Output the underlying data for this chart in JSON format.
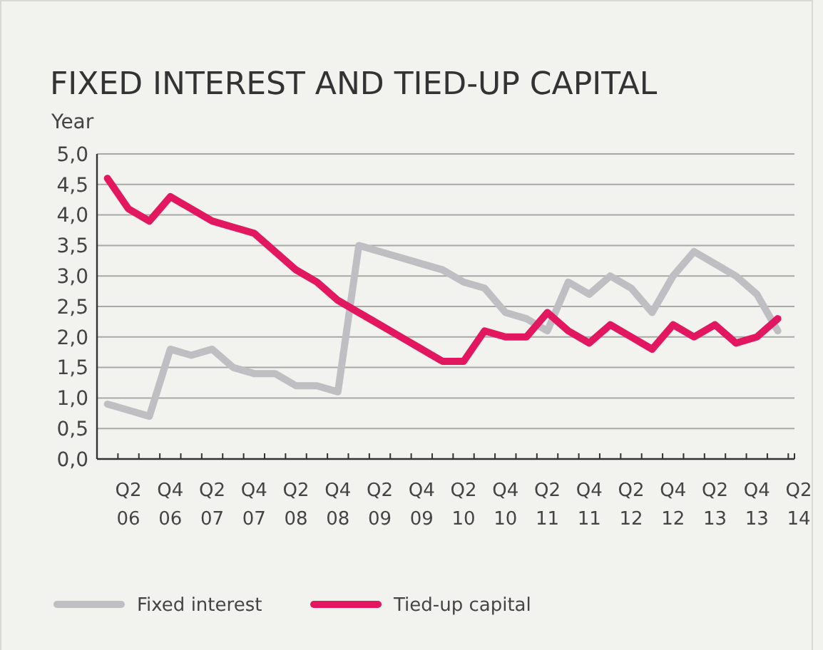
{
  "chart_data": {
    "type": "line",
    "title": "FIXED INTEREST AND TIED-UP CAPITAL",
    "ylabel": "Year",
    "categories": [
      null,
      "Q2 06",
      null,
      "Q4 06",
      null,
      "Q2 07",
      null,
      "Q4 07",
      null,
      "Q2 08",
      null,
      "Q4 08",
      null,
      "Q2 09",
      null,
      "Q4 09",
      null,
      "Q2 10",
      null,
      "Q4 10",
      null,
      "Q2 11",
      null,
      "Q4 11",
      null,
      "Q2 12",
      null,
      "Q4 12",
      null,
      "Q2 13",
      null,
      "Q4 13",
      null,
      "Q2 14"
    ],
    "series": [
      {
        "name": "Fixed interest",
        "color": "#bfbfc3",
        "values": [
          0.9,
          0.8,
          0.7,
          1.8,
          1.7,
          1.8,
          1.5,
          1.4,
          1.4,
          1.2,
          1.2,
          1.1,
          3.5,
          3.4,
          3.3,
          3.2,
          3.1,
          2.9,
          2.8,
          2.4,
          2.3,
          2.1,
          2.9,
          2.7,
          3.0,
          2.8,
          2.4,
          3.0,
          3.4,
          3.2,
          3.0,
          2.7,
          2.1,
          null
        ]
      },
      {
        "name": "Tied-up capital",
        "color": "#e2175f",
        "values": [
          4.6,
          4.1,
          3.9,
          4.3,
          4.1,
          3.9,
          3.8,
          3.7,
          3.4,
          3.1,
          2.9,
          2.6,
          2.4,
          2.2,
          2.0,
          1.8,
          1.6,
          1.6,
          2.1,
          2.0,
          2.0,
          2.4,
          2.1,
          1.9,
          2.2,
          2.0,
          1.8,
          2.2,
          2.0,
          2.2,
          1.9,
          2.0,
          2.3,
          null
        ]
      }
    ],
    "ylim": [
      0,
      5
    ],
    "yticks": [
      {
        "value": 0,
        "label": "0,0"
      },
      {
        "value": 0.5,
        "label": "0,5"
      },
      {
        "value": 1,
        "label": "1,0"
      },
      {
        "value": 1.5,
        "label": "1,5"
      },
      {
        "value": 2,
        "label": "2,0"
      },
      {
        "value": 2.5,
        "label": "2,5"
      },
      {
        "value": 3,
        "label": "3,0"
      },
      {
        "value": 3.5,
        "label": "3,5"
      },
      {
        "value": 4,
        "label": "4,0"
      },
      {
        "value": 4.5,
        "label": "4,5"
      },
      {
        "value": 5,
        "label": "5,0"
      }
    ],
    "grid": "y",
    "legend": "bottom",
    "marker": "none",
    "line_style": "solid"
  }
}
